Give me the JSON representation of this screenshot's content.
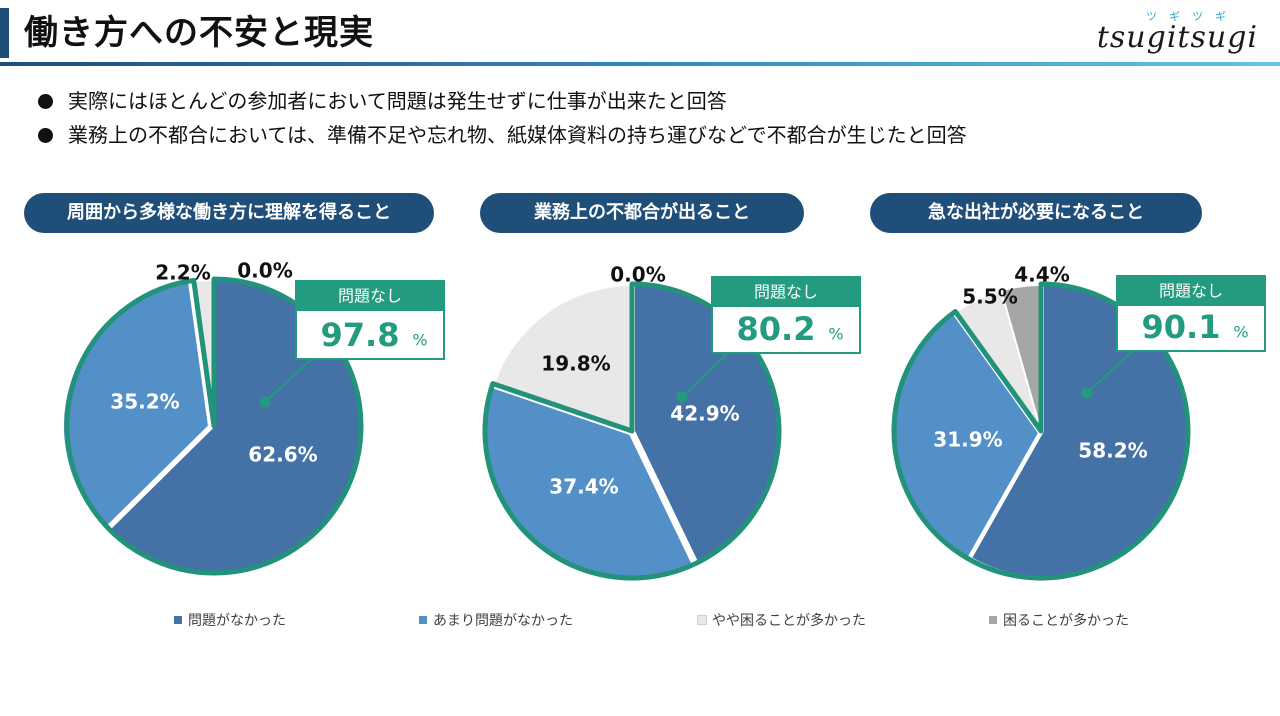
{
  "header": {
    "title": "働き方への不安と現実"
  },
  "logo": {
    "ruby": "ツギツギ",
    "word": "tsugitsugi"
  },
  "bullets": [
    "実際にはほとんどの参加者において問題は発生せずに仕事が出来たと回答",
    "業務上の不都合においては、準備不足や忘れ物、紙媒体資料の持ち運びなどで不都合が生じたと回答"
  ],
  "colors": {
    "header_accent": "#1f4e79",
    "pill_bg": "#1f4e79",
    "callout_green": "#239b80",
    "ring": "#23927a"
  },
  "legend": [
    {
      "label": "問題がなかった",
      "color": "#4472a6"
    },
    {
      "label": "あまり問題がなかった",
      "color": "#5390c8"
    },
    {
      "label": "やや困ることが多かった",
      "color": "#e8e8e8"
    },
    {
      "label": "困ることが多かった",
      "color": "#a6a6a6"
    }
  ],
  "chart_data": [
    {
      "type": "pie",
      "title": "周囲から多様な働き方に理解を得ること",
      "categories": [
        "問題がなかった",
        "あまり問題がなかった",
        "やや困ることが多かった",
        "困ることが多かった"
      ],
      "values": [
        62.6,
        35.2,
        2.2,
        0.0
      ],
      "labels": [
        "62.6%",
        "35.2%",
        "2.2%",
        "0.0%"
      ],
      "callout": {
        "label": "問題なし",
        "value": "97.8",
        "unit": "%"
      }
    },
    {
      "type": "pie",
      "title": "業務上の不都合が出ること",
      "categories": [
        "問題がなかった",
        "あまり問題がなかった",
        "やや困ることが多かった",
        "困ることが多かった"
      ],
      "values": [
        42.9,
        37.4,
        19.8,
        0.0
      ],
      "labels": [
        "42.9%",
        "37.4%",
        "19.8%",
        "0.0%"
      ],
      "callout": {
        "label": "問題なし",
        "value": "80.2",
        "unit": "%"
      }
    },
    {
      "type": "pie",
      "title": "急な出社が必要になること",
      "categories": [
        "問題がなかった",
        "あまり問題がなかった",
        "やや困ることが多かった",
        "困ることが多かった"
      ],
      "values": [
        58.2,
        31.9,
        5.5,
        4.4
      ],
      "labels": [
        "58.2%",
        "31.9%",
        "5.5%",
        "4.4%"
      ],
      "callout": {
        "label": "問題なし",
        "value": "90.1",
        "unit": "%"
      }
    }
  ]
}
